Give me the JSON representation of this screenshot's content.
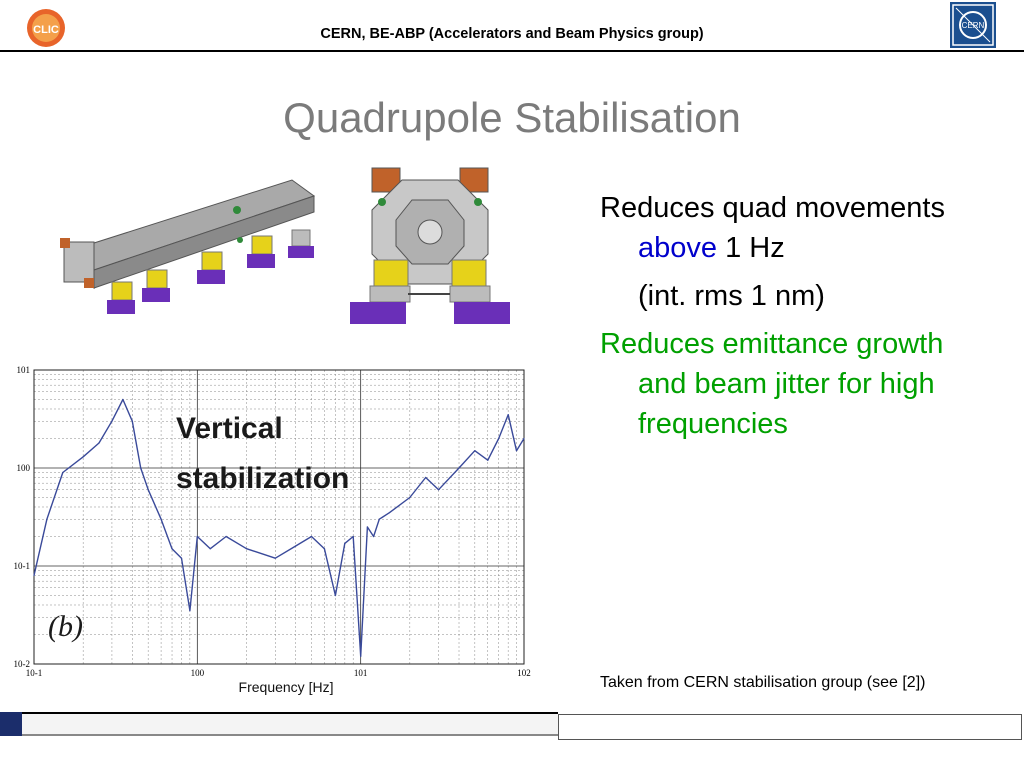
{
  "header": {
    "title": "CERN, BE-ABP (Accelerators and Beam Physics group)",
    "clic_logo_text": "CLIC",
    "cern_logo_text": "CERN"
  },
  "slide": {
    "title": "Quadrupole Stabilisation"
  },
  "bullets": {
    "b1_line1": "Reduces quad movements",
    "b1_line2_highlight": "above",
    "b1_line2_rest": " 1 Hz",
    "b1_line3": "(int. rms 1 nm)",
    "b2_line1": "Reduces emittance growth",
    "b2_line2": "and beam jitter for high",
    "b2_line3": "frequencies"
  },
  "source_note": "Taken from CERN stabilisation group (see [2])",
  "chart": {
    "label_main_1": "Vertical",
    "label_main_2": "stabilization",
    "panel_label": "(b)",
    "xlabel": "Frequency [Hz]",
    "x_ticks": [
      "10-1",
      "100",
      "101",
      "102"
    ],
    "y_ticks": [
      "101",
      "100",
      "10-1",
      "10-2"
    ]
  },
  "chart_data": {
    "type": "line",
    "xlabel": "Frequency [Hz]",
    "ylabel": "",
    "x_scale": "log",
    "y_scale": "log",
    "xlim": [
      0.1,
      100
    ],
    "ylim": [
      0.01,
      10
    ],
    "grid": true,
    "series": [
      {
        "color": "#3a4a9a",
        "x": [
          0.1,
          0.12,
          0.15,
          0.2,
          0.25,
          0.3,
          0.35,
          0.4,
          0.45,
          0.5,
          0.6,
          0.7,
          0.8,
          0.9,
          1.0,
          1.2,
          1.5,
          2,
          3,
          4,
          5,
          6,
          7,
          8,
          9,
          10,
          11,
          12,
          13,
          15,
          20,
          25,
          30,
          40,
          50,
          60,
          70,
          80,
          90,
          100
        ],
        "y": [
          0.08,
          0.3,
          0.9,
          1.3,
          1.8,
          3.0,
          5.0,
          3.0,
          1.0,
          0.6,
          0.3,
          0.15,
          0.12,
          0.035,
          0.2,
          0.15,
          0.2,
          0.15,
          0.12,
          0.16,
          0.2,
          0.15,
          0.05,
          0.17,
          0.2,
          0.012,
          0.25,
          0.2,
          0.3,
          0.35,
          0.5,
          0.8,
          0.6,
          1.0,
          1.5,
          1.2,
          2.0,
          3.5,
          1.5,
          2.0
        ]
      }
    ]
  }
}
